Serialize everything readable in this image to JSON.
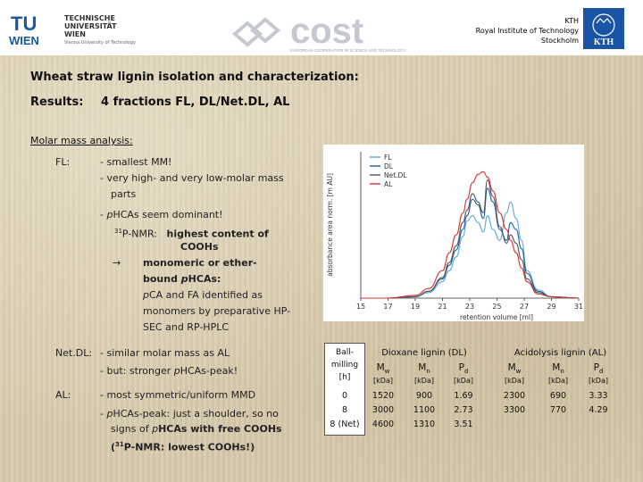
{
  "header": {
    "tu": {
      "line1": "TECHNISCHE",
      "line2": "UNIVERSITÄT",
      "line3": "WIEN",
      "line4": "Vienna University of Technology",
      "mark_top": "TU",
      "mark_bottom": "WIEN"
    },
    "cost": {
      "wordmark": "cost",
      "tagline": "EUROPEAN COOPERATION IN SCIENCE AND TECHNOLOGY"
    },
    "kth": {
      "line1": "KTH",
      "line2": "Royal Institute of Technology",
      "line3": "Stockholm",
      "logo_text": "KTH"
    }
  },
  "title": "Wheat straw lignin isolation and characterization:",
  "results": {
    "label": "Results:",
    "text": "4 fractions FL, DL/Net.DL, AL"
  },
  "molar_heading": "Molar mass analysis:",
  "fl": {
    "label": "FL:",
    "b1": "- smallest MM!",
    "b2a": "- very high- and very low-molar mass",
    "b2b": "parts",
    "b3_pre": "- ",
    "b3_italic": "p",
    "b3_post": "HCAs seem dominant!",
    "nmr_sup": "31",
    "nmr_pre": "P-NMR:",
    "nmr_bold": "highest content of",
    "nmr_bold2": "COOHs",
    "arrow": "→",
    "mono1": "monomeric or ether-",
    "mono2_pre": "bound ",
    "mono2_it": "p",
    "mono2_post": "HCAs:",
    "pca1_it": "p",
    "pca1_post": "CA and FA identified as",
    "pca2": "monomers by preparative HP-",
    "pca3": "SEC and RP-HPLC"
  },
  "netdl": {
    "label": "Net.DL:",
    "b1": "- similar molar mass as AL",
    "b2_pre": "- but: stronger ",
    "b2_it": "p",
    "b2_post": "HCAs-peak!"
  },
  "al": {
    "label": "AL:",
    "b1": "- most symmetric/uniform MMD",
    "b2_pre": "- ",
    "b2_it": "p",
    "b2_post": "HCAs-peak: just a shoulder, so no",
    "b3_pre": "signs of ",
    "b3_it": "p",
    "b3_post": "HCAs with free COOHs",
    "b4_pre": "(",
    "b4_sup": "31",
    "b4_post": "P-NMR: lowest COOHs!)"
  },
  "chart_data": {
    "type": "line",
    "xlabel": "retention volume [ml]",
    "ylabel": "absorbance area norm. [m AU]",
    "xlim": [
      15,
      31
    ],
    "xticks": [
      15,
      17,
      19,
      21,
      23,
      25,
      27,
      29,
      31
    ],
    "legend": "top-left",
    "series": [
      {
        "name": "FL",
        "color": "#5aa9d6",
        "x": [
          15,
          17,
          19,
          20,
          21,
          21.5,
          22,
          22.5,
          22.8,
          23.2,
          23.6,
          24,
          24.3,
          24.7,
          25.2,
          25.7,
          26,
          26.4,
          26.8,
          27.2,
          28,
          29,
          31
        ],
        "y": [
          0,
          0,
          0.01,
          0.04,
          0.12,
          0.2,
          0.3,
          0.45,
          0.56,
          0.6,
          0.55,
          0.48,
          0.6,
          0.5,
          0.42,
          0.62,
          0.7,
          0.58,
          0.42,
          0.2,
          0.06,
          0.01,
          0
        ]
      },
      {
        "name": "DL",
        "color": "#1b5fa3",
        "x": [
          15,
          17,
          19,
          20,
          21,
          21.5,
          22,
          22.5,
          22.8,
          23.2,
          23.6,
          24,
          24.3,
          24.7,
          25.2,
          25.7,
          26,
          26.4,
          26.8,
          27.2,
          28,
          29,
          31
        ],
        "y": [
          0,
          0,
          0.01,
          0.05,
          0.14,
          0.24,
          0.35,
          0.5,
          0.6,
          0.72,
          0.68,
          0.58,
          0.8,
          0.7,
          0.5,
          0.42,
          0.55,
          0.5,
          0.36,
          0.18,
          0.05,
          0.01,
          0
        ]
      },
      {
        "name": "Net.DL",
        "color": "#555555",
        "x": [
          15,
          17,
          19,
          20,
          21,
          21.5,
          22,
          22.5,
          22.8,
          23.2,
          23.6,
          24,
          24.3,
          24.7,
          25.2,
          25.7,
          26,
          26.4,
          26.8,
          27.2,
          28,
          29,
          31
        ],
        "y": [
          0,
          0,
          0.01,
          0.05,
          0.15,
          0.26,
          0.38,
          0.55,
          0.64,
          0.76,
          0.7,
          0.62,
          0.86,
          0.74,
          0.52,
          0.4,
          0.46,
          0.4,
          0.28,
          0.14,
          0.04,
          0.01,
          0
        ]
      },
      {
        "name": "AL",
        "color": "#d2302f",
        "x": [
          15,
          17,
          19,
          20,
          21,
          21.5,
          22,
          22.5,
          22.8,
          23.2,
          23.6,
          24,
          24.3,
          24.7,
          25.2,
          25.7,
          26,
          26.4,
          26.8,
          27.2,
          28,
          29,
          31
        ],
        "y": [
          0,
          0,
          0.02,
          0.07,
          0.2,
          0.33,
          0.46,
          0.62,
          0.72,
          0.84,
          0.9,
          0.92,
          0.88,
          0.78,
          0.62,
          0.5,
          0.42,
          0.33,
          0.22,
          0.12,
          0.03,
          0.01,
          0
        ]
      }
    ]
  },
  "table": {
    "ballmilling": {
      "h1": "Ball-",
      "h2": "milling",
      "h3": "[h]",
      "values": [
        "0",
        "8",
        "8 (Net)"
      ]
    },
    "dioxane": {
      "title": "Dioxane lignin (DL)",
      "cols": [
        {
          "sym": "M",
          "sub": "w",
          "unit": "[kDa]",
          "values": [
            "1520",
            "3000",
            "4600"
          ]
        },
        {
          "sym": "M",
          "sub": "n",
          "unit": "[kDa]",
          "values": [
            "900",
            "1100",
            "1310"
          ]
        },
        {
          "sym": "P",
          "sub": "d",
          "unit": "[kDa]",
          "values": [
            "1.69",
            "2.73",
            "3.51"
          ]
        }
      ]
    },
    "acidolysis": {
      "title": "Acidolysis lignin (AL)",
      "cols": [
        {
          "sym": "M",
          "sub": "w",
          "unit": "[kDa]",
          "values": [
            "2300",
            "3300"
          ]
        },
        {
          "sym": "M",
          "sub": "n",
          "unit": "[kDa]",
          "values": [
            "690",
            "770"
          ]
        },
        {
          "sym": "P",
          "sub": "d",
          "unit": "[kDa]",
          "values": [
            "3.33",
            "4.29"
          ]
        }
      ]
    }
  }
}
